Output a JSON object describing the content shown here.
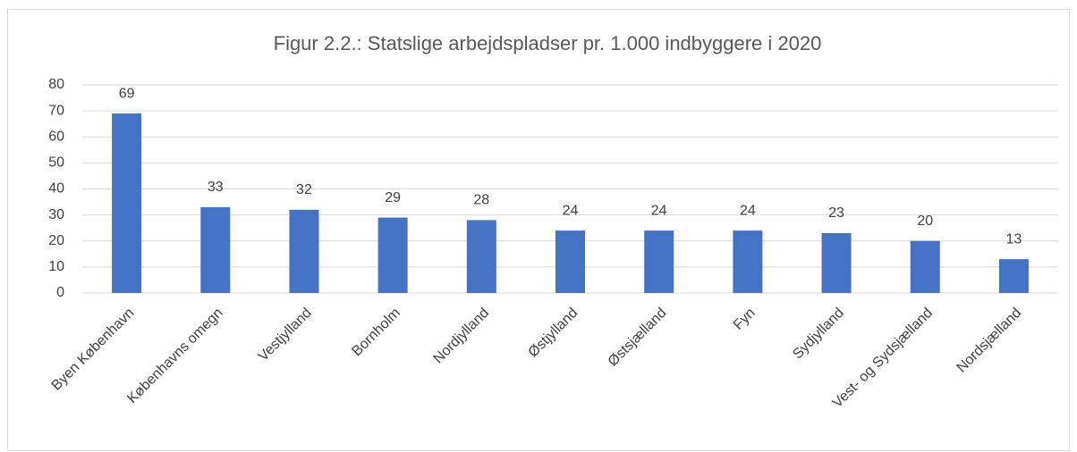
{
  "chart_data": {
    "type": "bar",
    "title": "Figur 2.2.: Statslige arbejdspladser pr. 1.000 indbyggere i 2020",
    "categories": [
      "Byen København",
      "Københavns omegn",
      "Vestjylland",
      "Bornholm",
      "Nordjylland",
      "Østjylland",
      "Østsjælland",
      "Fyn",
      "Sydjylland",
      "Vest- og Sydsjælland",
      "Nordsjælland"
    ],
    "values": [
      69,
      33,
      32,
      29,
      28,
      24,
      24,
      24,
      23,
      20,
      13
    ],
    "color": "#4472c4",
    "ylim": [
      0,
      80
    ],
    "yticks": [
      0,
      10,
      20,
      30,
      40,
      50,
      60,
      70,
      80
    ],
    "grid": true
  }
}
